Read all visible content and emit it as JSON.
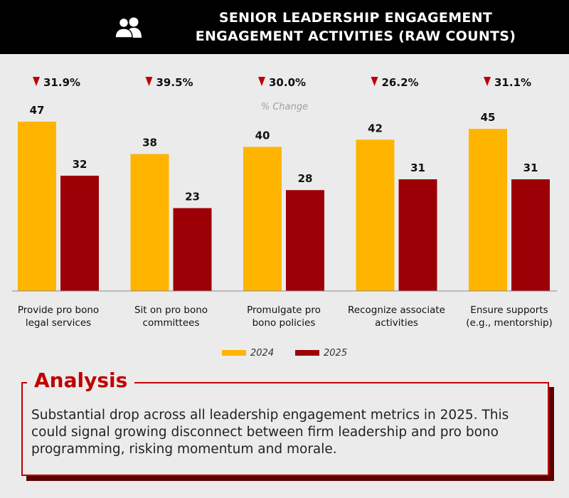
{
  "header": {
    "icon": "users-icon",
    "title_line1": "SENIOR LEADERSHIP ENGAGEMENT",
    "title_line2": "ENGAGEMENT ACTIVITIES (RAW COUNTS)"
  },
  "colors": {
    "series_2024": "#ffb400",
    "series_2025": "#9c0006",
    "change_arrow": "#c00000",
    "accent": "#c00000"
  },
  "chart_data": {
    "type": "bar",
    "title": "ENGAGEMENT ACTIVITIES (RAW COUNTS)",
    "subtitle": "% Change",
    "categories": [
      [
        "Provide pro bono",
        "legal services"
      ],
      [
        "Sit on pro bono",
        "committees"
      ],
      [
        "Promulgate pro",
        "bono policies"
      ],
      [
        "Recognize associate",
        "activities"
      ],
      [
        "Ensure supports",
        "(e.g., mentorship)"
      ]
    ],
    "series": [
      {
        "name": "2024",
        "values": [
          47,
          38,
          40,
          42,
          45
        ]
      },
      {
        "name": "2025",
        "values": [
          32,
          23,
          28,
          31,
          31
        ]
      }
    ],
    "pct_change": [
      "31.9%",
      "39.5%",
      "30.0%",
      "26.2%",
      "31.1%"
    ],
    "change_direction": "down",
    "ylim": [
      0,
      47
    ],
    "legend": [
      "2024",
      "2025"
    ],
    "legend_position": "bottom"
  },
  "analysis": {
    "title": "Analysis",
    "text": "Substantial drop across all leadership engagement metrics in 2025. This could signal growing disconnect between firm leadership and pro bono programming, risking momentum and morale."
  }
}
